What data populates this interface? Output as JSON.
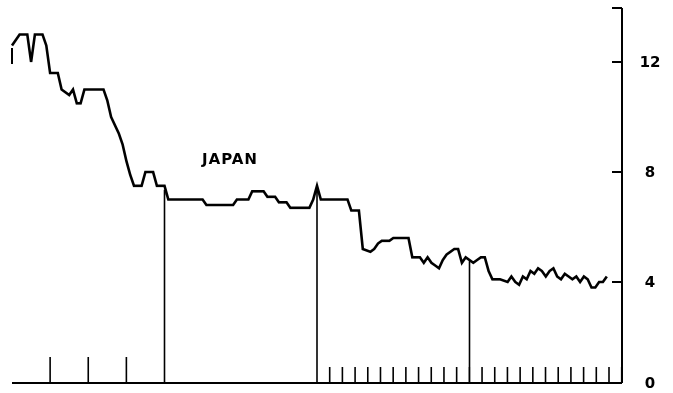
{
  "chart_data": {
    "type": "line",
    "title": "",
    "xlabel": "",
    "ylabel": "",
    "ylim": [
      0,
      14
    ],
    "y_axis_side": "right",
    "grid": false,
    "y_ticks": [
      {
        "value": 0,
        "label": "0"
      },
      {
        "value": 4,
        "label": "4"
      },
      {
        "value": 8,
        "label": "8"
      },
      {
        "value": 12,
        "label": "12"
      }
    ],
    "x_index_range": [
      0,
      160
    ],
    "x_tick_groups": [
      {
        "from": 0,
        "to": 40,
        "step": 10,
        "length": "short"
      },
      {
        "from": 80,
        "to": 160,
        "step": 3.33,
        "length": "short"
      }
    ],
    "x_major_dividers": [
      40,
      80,
      120
    ],
    "series": [
      {
        "name": "JAPAN",
        "color": "#000000",
        "points": [
          [
            0,
            12.6
          ],
          [
            2,
            13
          ],
          [
            4,
            13
          ],
          [
            5,
            12
          ],
          [
            6,
            13
          ],
          [
            8,
            13
          ],
          [
            9,
            12.6
          ],
          [
            10,
            11.6
          ],
          [
            12,
            11.6
          ],
          [
            13,
            11
          ],
          [
            15,
            10.8
          ],
          [
            16,
            11
          ],
          [
            17,
            10.5
          ],
          [
            18,
            10.5
          ],
          [
            19,
            11
          ],
          [
            24,
            11
          ],
          [
            25,
            10.6
          ],
          [
            26,
            10
          ],
          [
            28,
            9.4
          ],
          [
            29,
            9
          ],
          [
            30,
            8.4
          ],
          [
            31,
            7.9
          ],
          [
            32,
            7.5
          ],
          [
            34,
            7.5
          ],
          [
            35,
            8
          ],
          [
            37,
            8
          ],
          [
            38,
            7.5
          ],
          [
            40,
            7.5
          ],
          [
            41,
            7
          ],
          [
            50,
            7
          ],
          [
            51,
            6.8
          ],
          [
            58,
            6.8
          ],
          [
            59,
            7
          ],
          [
            62,
            7
          ],
          [
            63,
            7.3
          ],
          [
            66,
            7.3
          ],
          [
            67,
            7.1
          ],
          [
            69,
            7.1
          ],
          [
            70,
            6.9
          ],
          [
            72,
            6.9
          ],
          [
            73,
            6.7
          ],
          [
            78,
            6.7
          ],
          [
            79,
            7
          ],
          [
            80,
            7.5
          ],
          [
            81,
            7
          ],
          [
            87,
            7
          ],
          [
            88,
            7
          ],
          [
            89,
            6.6
          ],
          [
            91,
            6.6
          ],
          [
            92,
            5.2
          ],
          [
            94,
            5.1
          ],
          [
            95,
            5.2
          ],
          [
            96,
            5.4
          ],
          [
            97,
            5.5
          ],
          [
            99,
            5.5
          ],
          [
            100,
            5.6
          ],
          [
            104,
            5.6
          ],
          [
            105,
            4.9
          ],
          [
            107,
            4.9
          ],
          [
            108,
            4.7
          ],
          [
            109,
            4.9
          ],
          [
            110,
            4.7
          ],
          [
            111,
            4.6
          ],
          [
            112,
            4.5
          ],
          [
            113,
            4.8
          ],
          [
            114,
            5
          ],
          [
            115,
            5.1
          ],
          [
            116,
            5.2
          ],
          [
            117,
            5.2
          ],
          [
            118,
            4.7
          ],
          [
            119,
            4.9
          ],
          [
            121,
            4.7
          ],
          [
            122,
            4.8
          ],
          [
            123,
            4.9
          ],
          [
            124,
            4.9
          ],
          [
            125,
            4.4
          ],
          [
            126,
            4.1
          ],
          [
            127,
            4.1
          ],
          [
            128,
            4.1
          ],
          [
            130,
            4.0
          ],
          [
            131,
            4.2
          ],
          [
            132,
            4.0
          ],
          [
            133,
            3.9
          ],
          [
            134,
            4.2
          ],
          [
            135,
            4.1
          ],
          [
            136,
            4.4
          ],
          [
            137,
            4.3
          ],
          [
            138,
            4.5
          ],
          [
            139,
            4.4
          ],
          [
            140,
            4.2
          ],
          [
            141,
            4.4
          ],
          [
            142,
            4.5
          ],
          [
            143,
            4.2
          ],
          [
            144,
            4.1
          ],
          [
            145,
            4.3
          ],
          [
            146,
            4.2
          ],
          [
            147,
            4.1
          ],
          [
            148,
            4.2
          ],
          [
            149,
            4.0
          ],
          [
            150,
            4.2
          ],
          [
            151,
            4.1
          ],
          [
            152,
            3.8
          ],
          [
            153,
            3.8
          ],
          [
            154,
            4.0
          ],
          [
            155,
            4.0
          ],
          [
            156,
            4.2
          ]
        ]
      }
    ]
  }
}
